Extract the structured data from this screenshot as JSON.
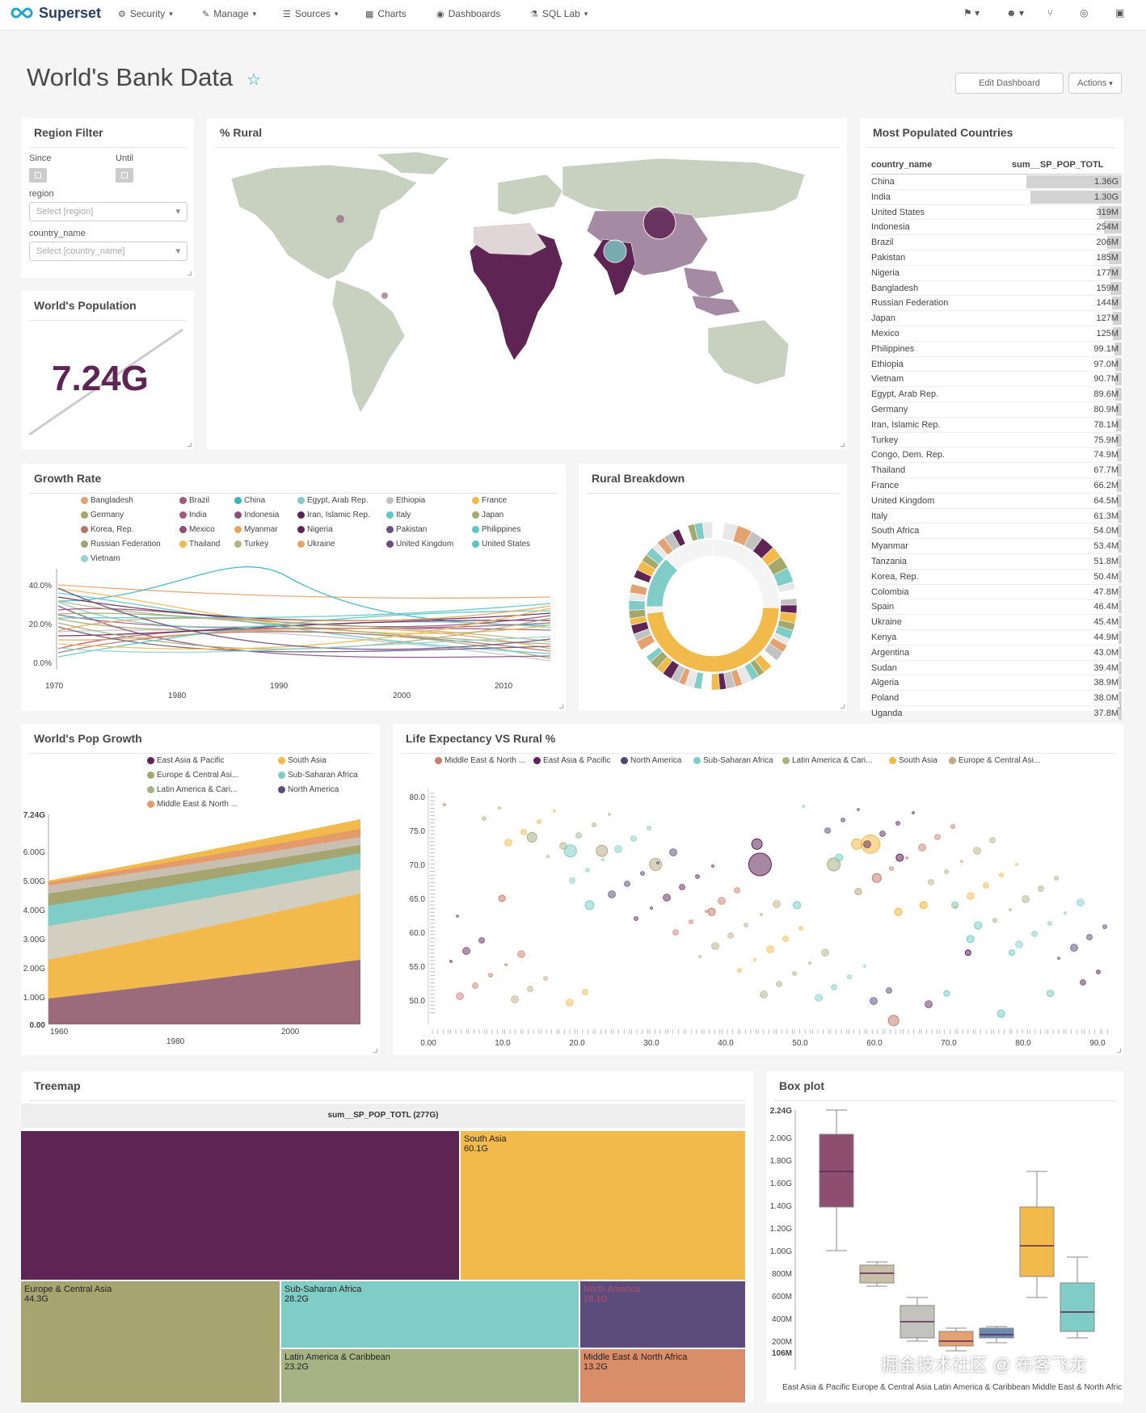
{
  "nav": {
    "brand": "Superset",
    "items": [
      {
        "label": "Security",
        "icon": "cogs-icon"
      },
      {
        "label": "Manage",
        "icon": "wrench-icon"
      },
      {
        "label": "Sources",
        "icon": "database-icon"
      },
      {
        "label": "Charts",
        "icon": "bar-chart-icon"
      },
      {
        "label": "Dashboards",
        "icon": "dashboard-icon"
      },
      {
        "label": "SQL Lab",
        "icon": "flask-icon"
      }
    ]
  },
  "dashboard": {
    "title": "World's Bank Data",
    "edit_label": "Edit Dashboard",
    "actions_label": "Actions"
  },
  "filter": {
    "title": "Region Filter",
    "since": "Since",
    "until": "Until",
    "region_label": "region",
    "region_placeholder": "Select [region]",
    "country_label": "country_name",
    "country_placeholder": "Select [country_name]"
  },
  "population": {
    "title": "World's Population",
    "value": "7.24G"
  },
  "rural": {
    "title": "% Rural"
  },
  "most_populated": {
    "title": "Most Populated Countries",
    "col1": "country_name",
    "col2": "sum__SP_POP_TOTL",
    "rows": [
      [
        "China",
        "1.36G",
        1.36
      ],
      [
        "India",
        "1.30G",
        1.3
      ],
      [
        "United States",
        "319M",
        0.319
      ],
      [
        "Indonesia",
        "254M",
        0.254
      ],
      [
        "Brazil",
        "206M",
        0.206
      ],
      [
        "Pakistan",
        "185M",
        0.185
      ],
      [
        "Nigeria",
        "177M",
        0.177
      ],
      [
        "Bangladesh",
        "159M",
        0.159
      ],
      [
        "Russian Federation",
        "144M",
        0.144
      ],
      [
        "Japan",
        "127M",
        0.127
      ],
      [
        "Mexico",
        "125M",
        0.125
      ],
      [
        "Philippines",
        "99.1M",
        0.0991
      ],
      [
        "Ethiopia",
        "97.0M",
        0.097
      ],
      [
        "Vietnam",
        "90.7M",
        0.0907
      ],
      [
        "Egypt, Arab Rep.",
        "89.6M",
        0.0896
      ],
      [
        "Germany",
        "80.9M",
        0.0809
      ],
      [
        "Iran, Islamic Rep.",
        "78.1M",
        0.0781
      ],
      [
        "Turkey",
        "75.9M",
        0.0759
      ],
      [
        "Congo, Dem. Rep.",
        "74.9M",
        0.0749
      ],
      [
        "Thailand",
        "67.7M",
        0.0677
      ],
      [
        "France",
        "66.2M",
        0.0662
      ],
      [
        "United Kingdom",
        "64.5M",
        0.0645
      ],
      [
        "Italy",
        "61.3M",
        0.0613
      ],
      [
        "South Africa",
        "54.0M",
        0.054
      ],
      [
        "Myanmar",
        "53.4M",
        0.0534
      ],
      [
        "Tanzania",
        "51.8M",
        0.0518
      ],
      [
        "Korea, Rep.",
        "50.4M",
        0.0504
      ],
      [
        "Colombia",
        "47.8M",
        0.0478
      ],
      [
        "Spain",
        "46.4M",
        0.0464
      ],
      [
        "Ukraine",
        "45.4M",
        0.0454
      ],
      [
        "Kenya",
        "44.9M",
        0.0449
      ],
      [
        "Argentina",
        "43.0M",
        0.043
      ],
      [
        "Sudan",
        "39.4M",
        0.0394
      ],
      [
        "Algeria",
        "38.9M",
        0.0389
      ],
      [
        "Poland",
        "38.0M",
        0.038
      ],
      [
        "Uganda",
        "37.8M",
        0.0378
      ]
    ]
  },
  "growth": {
    "title": "Growth Rate",
    "legend": [
      [
        "Bangladesh",
        "#e3a26f"
      ],
      [
        "Brazil",
        "#9c5a7c"
      ],
      [
        "China",
        "#36b4c1"
      ],
      [
        "Egypt, Arab Rep.",
        "#7fcdc6"
      ],
      [
        "Ethiopia",
        "#c2c2c2"
      ],
      [
        "France",
        "#f2b94b"
      ],
      [
        "Germany",
        "#a5a86b"
      ],
      [
        "India",
        "#a9577a"
      ],
      [
        "Indonesia",
        "#8a4f7d"
      ],
      [
        "Iran, Islamic Rep.",
        "#5d2156"
      ],
      [
        "Italy",
        "#5ec6cc"
      ],
      [
        "Japan",
        "#a6ab73"
      ],
      [
        "Korea, Rep.",
        "#b0736a"
      ],
      [
        "Mexico",
        "#8d4e6f"
      ],
      [
        "Myanmar",
        "#e8a55d"
      ],
      [
        "Nigeria",
        "#5e2554"
      ],
      [
        "Pakistan",
        "#63557a"
      ],
      [
        "Philippines",
        "#5cc5c5"
      ],
      [
        "Russian Federation",
        "#9ca877"
      ],
      [
        "Thailand",
        "#f2b94b"
      ],
      [
        "Turkey",
        "#b3b383"
      ],
      [
        "Ukraine",
        "#e8a55d"
      ],
      [
        "United Kingdom",
        "#6d4d7d"
      ],
      [
        "United States",
        "#5cc4c4"
      ],
      [
        "Vietnam",
        "#8fd4cf"
      ]
    ],
    "xticks": [
      "1970",
      "1980",
      "1990",
      "2000",
      "2010"
    ],
    "yticks": [
      "40.0%",
      "20.0%",
      "0.0%"
    ]
  },
  "breakdown": {
    "title": "Rural Breakdown"
  },
  "popgrowth": {
    "title": "World's Pop Growth",
    "legend": [
      [
        "East Asia & Pacific",
        "#5e2554"
      ],
      [
        "South Asia",
        "#f2b94b"
      ],
      [
        "Europe & Central Asi...",
        "#a5a86b"
      ],
      [
        "Sub-Saharan Africa",
        "#7fcdc6"
      ],
      [
        "Latin America & Cari...",
        "#a6b384"
      ],
      [
        "North America",
        "#5b4c7b"
      ],
      [
        "Middle East & North ...",
        "#e49a6b"
      ]
    ],
    "yticks": [
      "7.24G",
      "6.00G",
      "5.00G",
      "4.00G",
      "3.00G",
      "2.00G",
      "1.00G",
      "0.00"
    ],
    "xticks": [
      "1960",
      "1980",
      "2000"
    ]
  },
  "life": {
    "title": "Life Expectancy VS Rural %",
    "legend": [
      [
        "Middle East & North ...",
        "#c87f6b"
      ],
      [
        "East Asia & Pacific",
        "#5e2554"
      ],
      [
        "North America",
        "#4a4870"
      ],
      [
        "Sub-Saharan Africa",
        "#7fcdc6"
      ],
      [
        "Latin America & Cari...",
        "#a6b384"
      ],
      [
        "South Asia",
        "#f2b94b"
      ],
      [
        "Europe & Central Asi...",
        "#b9ad85"
      ]
    ],
    "yticks": [
      "80.0",
      "75.0",
      "70.0",
      "65.0",
      "60.0",
      "55.0",
      "50.0"
    ],
    "xticks": [
      "0.00",
      "10.0",
      "20.0",
      "30.0",
      "40.0",
      "50.0",
      "60.0",
      "70.0",
      "80.0",
      "90.0"
    ]
  },
  "treemap": {
    "title": "Treemap",
    "header": "sum__SP_POP_TOTL (277G)",
    "cells": [
      {
        "label": "",
        "value": ""
      },
      {
        "label": "South Asia",
        "value": "60.1G"
      },
      {
        "label": "Europe & Central Asia",
        "value": "44.3G"
      },
      {
        "label": "Sub-Saharan Africa",
        "value": "28.2G"
      },
      {
        "label": "North America",
        "value": "18.1G"
      },
      {
        "label": "Latin America & Caribbean",
        "value": "23.2G"
      },
      {
        "label": "Middle East & North Africa",
        "value": "13.2G"
      }
    ]
  },
  "boxplot": {
    "title": "Box plot",
    "yticks": [
      "2.24G",
      "2.00G",
      "1.80G",
      "1.60G",
      "1.40G",
      "1.20G",
      "1.00G",
      "800M",
      "600M",
      "400M",
      "200M",
      "106M"
    ],
    "xlabels": "East Asia & Pacific  Europe & Central Asia  Latin America & Caribbean  Middle East & North Africa  North America  South Asia  Sub-Saharan Africa"
  },
  "watermark": "掘金技术社区 @ 布客飞龙"
}
